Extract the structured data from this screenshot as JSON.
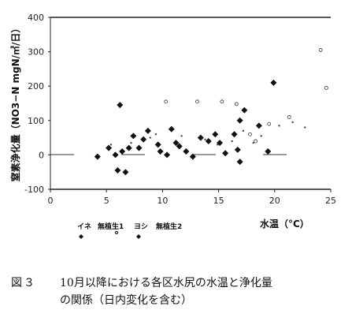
{
  "chart_data": {
    "type": "scatter",
    "xlabel": "水温（°C）",
    "ylabel": "窒素浄化量（NO3−N mgN/㎡/日）",
    "xlim": [
      0,
      25
    ],
    "ylim": [
      -100,
      400
    ],
    "x_ticks": [
      "0",
      "5",
      "10",
      "15",
      "20",
      "25"
    ],
    "y_ticks": [
      "-100",
      "0",
      "100",
      "200",
      "300",
      "400"
    ],
    "series": [
      {
        "name": "イネ",
        "marker": "filled-diamond",
        "points": [
          [
            4.2,
            -5
          ],
          [
            5.2,
            20
          ],
          [
            5.8,
            0
          ],
          [
            6.2,
            145
          ],
          [
            6.4,
            10
          ],
          [
            7.4,
            55
          ],
          [
            7.9,
            20
          ],
          [
            8.7,
            70
          ],
          [
            9.6,
            30
          ],
          [
            11.2,
            35
          ],
          [
            12.1,
            10
          ],
          [
            13.4,
            50
          ],
          [
            14.7,
            60
          ],
          [
            15.6,
            5
          ],
          [
            16.4,
            60
          ],
          [
            16.9,
            100
          ],
          [
            17.3,
            130
          ],
          [
            18.6,
            85
          ]
        ]
      },
      {
        "name": "無植生1",
        "marker": "open-circle",
        "points": [
          [
            10.3,
            155
          ],
          [
            13.1,
            155
          ],
          [
            15.3,
            155
          ],
          [
            16.6,
            148
          ],
          [
            17.8,
            60
          ],
          [
            18.3,
            40
          ],
          [
            19.5,
            90
          ],
          [
            21.3,
            110
          ],
          [
            24.1,
            305
          ],
          [
            24.6,
            195
          ]
        ]
      },
      {
        "name": "ヨシ",
        "marker": "filled-diamond",
        "points": [
          [
            6.0,
            -45
          ],
          [
            6.7,
            -50
          ],
          [
            7.0,
            20
          ],
          [
            8.3,
            45
          ],
          [
            9.8,
            10
          ],
          [
            10.4,
            0
          ],
          [
            10.8,
            75
          ],
          [
            11.5,
            25
          ],
          [
            12.7,
            -5
          ],
          [
            14.1,
            40
          ],
          [
            15.1,
            35
          ],
          [
            16.7,
            15
          ],
          [
            16.9,
            -20
          ],
          [
            19.9,
            210
          ],
          [
            19.4,
            10
          ]
        ]
      },
      {
        "name": "無植生2",
        "marker": "small-dot",
        "points": [
          [
            5.4,
            30
          ],
          [
            7.2,
            35
          ],
          [
            8.9,
            50
          ],
          [
            9.4,
            60
          ],
          [
            11.7,
            55
          ],
          [
            13.8,
            45
          ],
          [
            14.9,
            30
          ],
          [
            16.2,
            40
          ],
          [
            17.2,
            70
          ],
          [
            18.1,
            35
          ],
          [
            18.8,
            55
          ],
          [
            20.4,
            85
          ],
          [
            21.6,
            95
          ],
          [
            22.7,
            80
          ]
        ]
      }
    ],
    "legend_placement": "bottom-left",
    "grid": false
  },
  "legend": [
    "イネ",
    "無植生1",
    "ヨシ",
    "無植生2"
  ],
  "caption": {
    "figure_number": "図３",
    "line1": "10月以降における各区水尻の水温と浄化量",
    "line2": "の関係（日内変化を含む）"
  }
}
